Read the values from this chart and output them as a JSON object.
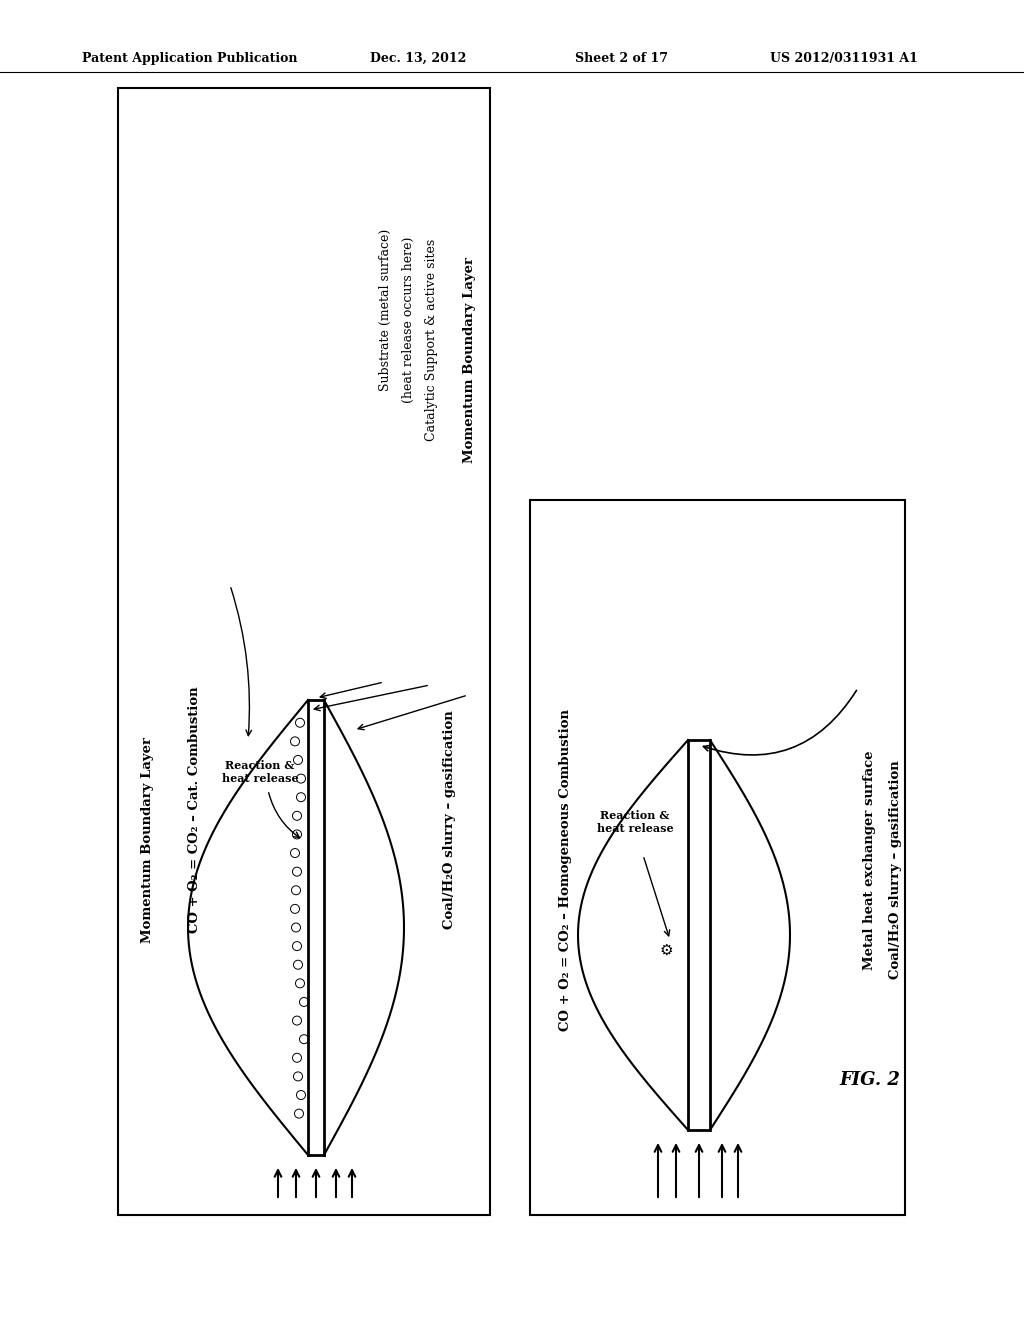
{
  "bg_color": "#ffffff",
  "header_text": "Patent Application Publication",
  "header_date": "Dec. 13, 2012",
  "header_sheet": "Sheet 2 of 17",
  "header_patent": "US 2012/0311931 A1",
  "fig_label": "FIG. 2"
}
